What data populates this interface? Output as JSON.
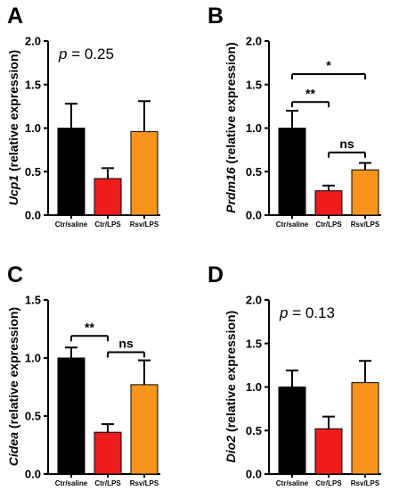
{
  "colors": {
    "Ctr/saline": "#000000",
    "Ctr/LPS": "#ee1c1c",
    "Rsv/LPS": "#f7941d"
  },
  "chart_data": [
    {
      "panel": "A",
      "type": "bar",
      "categories": [
        "Ctr/saline",
        "Ctr/LPS",
        "Rsv/LPS"
      ],
      "values": [
        1.0,
        0.42,
        0.96
      ],
      "errors": [
        0.28,
        0.12,
        0.35
      ],
      "ylabel_gene": "Ucp1",
      "ylabel_rest": " (relative expression)",
      "ylim": [
        0,
        2.0
      ],
      "yticks": [
        "0.0",
        "0.5",
        "1.0",
        "1.5",
        "2.0"
      ],
      "yticks_values": [
        0,
        0.5,
        1.0,
        1.5,
        2.0
      ],
      "annotation_p": "p",
      "annotation_rest": " = 0.25",
      "significance": []
    },
    {
      "panel": "B",
      "type": "bar",
      "categories": [
        "Ctr/saline",
        "Ctr/LPS",
        "Rsv/LPS"
      ],
      "values": [
        1.0,
        0.28,
        0.52
      ],
      "errors": [
        0.2,
        0.06,
        0.08
      ],
      "ylabel_gene": "Prdm16",
      "ylabel_rest": " (relative expression)",
      "ylim": [
        0,
        2.0
      ],
      "yticks": [
        "0.0",
        "0.5",
        "1.0",
        "1.5",
        "2.0"
      ],
      "yticks_values": [
        0,
        0.5,
        1.0,
        1.5,
        2.0
      ],
      "annotation_p": "",
      "annotation_rest": "",
      "significance": [
        {
          "from": 0,
          "to": 2,
          "label": "*",
          "level": 1.62
        },
        {
          "from": 0,
          "to": 1,
          "label": "**",
          "level": 1.3
        },
        {
          "from": 1,
          "to": 2,
          "label": "ns",
          "level": 0.72
        }
      ]
    },
    {
      "panel": "C",
      "type": "bar",
      "categories": [
        "Ctr/saline",
        "Ctr/LPS",
        "Rsv/LPS"
      ],
      "values": [
        1.0,
        0.36,
        0.77
      ],
      "errors": [
        0.09,
        0.07,
        0.21
      ],
      "ylabel_gene": "Cidea",
      "ylabel_rest": " (relative expression)",
      "ylim": [
        0,
        1.5
      ],
      "yticks": [
        "0.0",
        "0.5",
        "1.0",
        "1.5"
      ],
      "yticks_values": [
        0,
        0.5,
        1.0,
        1.5
      ],
      "annotation_p": "",
      "annotation_rest": "",
      "significance": [
        {
          "from": 0,
          "to": 1,
          "label": "**",
          "level": 1.19
        },
        {
          "from": 1,
          "to": 2,
          "label": "ns",
          "level": 1.05
        }
      ]
    },
    {
      "panel": "D",
      "type": "bar",
      "categories": [
        "Ctr/saline",
        "Ctr/LPS",
        "Rsv/LPS"
      ],
      "values": [
        1.0,
        0.52,
        1.05
      ],
      "errors": [
        0.19,
        0.14,
        0.25
      ],
      "ylabel_gene": "Dio2",
      "ylabel_rest": " (relative expression)",
      "ylim": [
        0,
        2.0
      ],
      "yticks": [
        "0.0",
        "0.5",
        "1.0",
        "1.5",
        "2.0"
      ],
      "yticks_values": [
        0,
        0.5,
        1.0,
        1.5,
        2.0
      ],
      "annotation_p": "p",
      "annotation_rest": " = 0.13",
      "significance": []
    }
  ]
}
